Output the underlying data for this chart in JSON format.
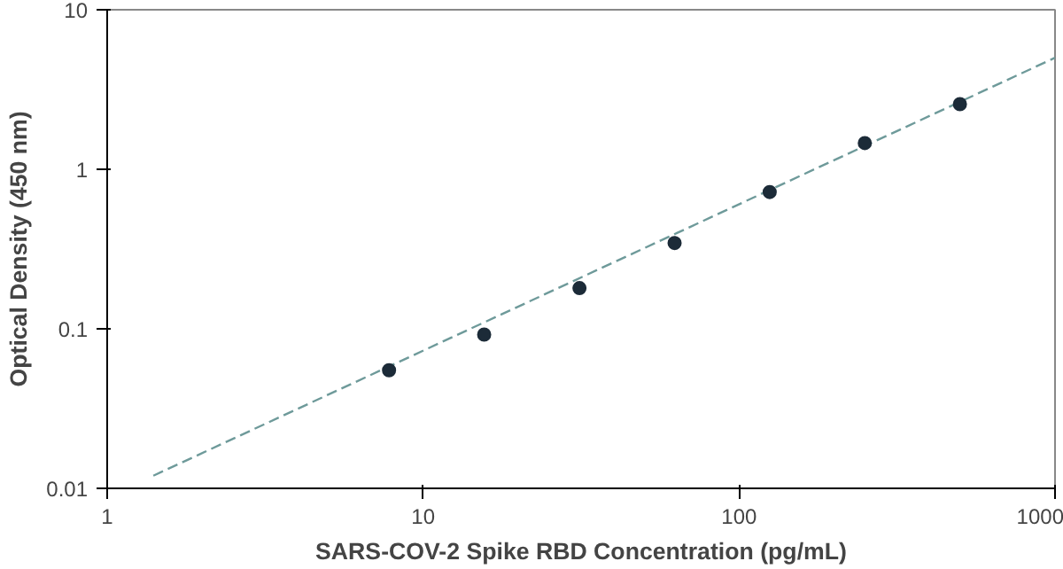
{
  "chart_data": {
    "type": "scatter",
    "xlabel": "SARS-COV-2 Spike RBD Concentration (pg/mL)",
    "ylabel": "Optical Density (450 nm)",
    "log": "xy",
    "xlim": [
      1,
      1000
    ],
    "ylim": [
      0.01,
      10
    ],
    "xticks": [
      1,
      10,
      100,
      1000
    ],
    "yticks": [
      0.01,
      0.1,
      1,
      10
    ],
    "grid": false,
    "series": [
      {
        "color": "#1c2b38",
        "marker": "circle",
        "x": [
          7.8,
          15.6,
          31.25,
          62.5,
          125,
          250,
          500
        ],
        "values": [
          0.055,
          0.092,
          0.18,
          0.345,
          0.72,
          1.46,
          2.56
        ]
      },
      {
        "type": "line",
        "color": "#6e9a9a",
        "line_style": "dashed",
        "x": [
          1.4,
          1000
        ],
        "values": [
          0.012,
          5
        ]
      }
    ]
  }
}
